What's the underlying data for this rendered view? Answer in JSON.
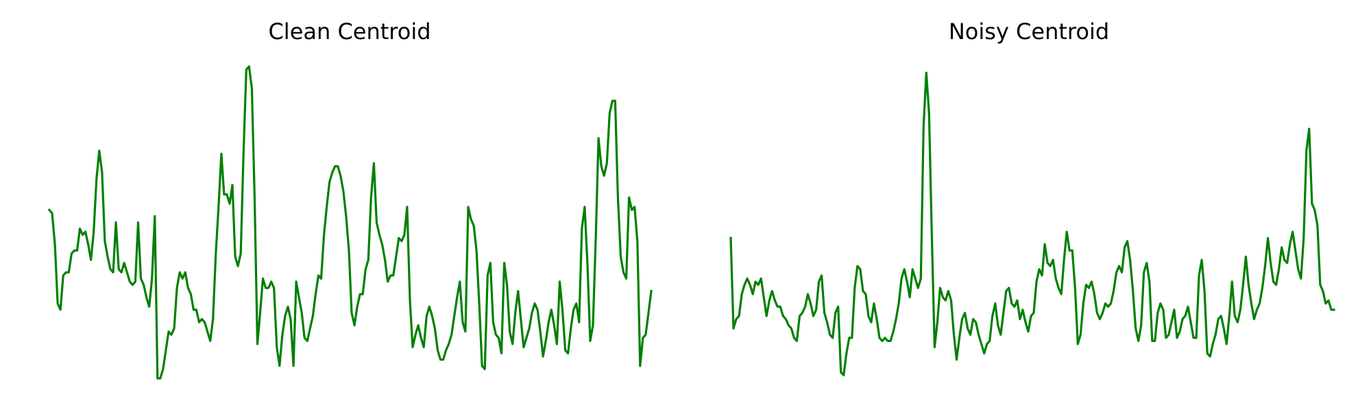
{
  "chart_data": [
    {
      "type": "line",
      "title": "Clean Centroid",
      "xlabel": "",
      "ylabel": "",
      "axes_visible": false,
      "grid": false,
      "line_color": "#008000",
      "ylim": [
        0,
        1
      ],
      "values": [
        0.54,
        0.53,
        0.43,
        0.24,
        0.22,
        0.33,
        0.34,
        0.34,
        0.4,
        0.41,
        0.41,
        0.48,
        0.46,
        0.47,
        0.43,
        0.38,
        0.47,
        0.64,
        0.73,
        0.66,
        0.44,
        0.39,
        0.35,
        0.34,
        0.5,
        0.35,
        0.34,
        0.37,
        0.34,
        0.31,
        0.3,
        0.31,
        0.5,
        0.32,
        0.3,
        0.26,
        0.23,
        0.32,
        0.52,
        0.0,
        0.0,
        0.03,
        0.09,
        0.15,
        0.14,
        0.16,
        0.29,
        0.34,
        0.32,
        0.34,
        0.29,
        0.27,
        0.22,
        0.22,
        0.18,
        0.19,
        0.18,
        0.15,
        0.12,
        0.19,
        0.4,
        0.55,
        0.72,
        0.59,
        0.59,
        0.56,
        0.62,
        0.39,
        0.36,
        0.4,
        0.72,
        0.99,
        1.0,
        0.93,
        0.58,
        0.11,
        0.21,
        0.32,
        0.29,
        0.29,
        0.31,
        0.29,
        0.1,
        0.04,
        0.14,
        0.2,
        0.23,
        0.19,
        0.04,
        0.31,
        0.26,
        0.21,
        0.13,
        0.12,
        0.16,
        0.2,
        0.27,
        0.33,
        0.32,
        0.46,
        0.55,
        0.63,
        0.66,
        0.68,
        0.68,
        0.65,
        0.6,
        0.52,
        0.41,
        0.21,
        0.17,
        0.23,
        0.27,
        0.27,
        0.35,
        0.38,
        0.58,
        0.69,
        0.5,
        0.46,
        0.43,
        0.38,
        0.31,
        0.33,
        0.33,
        0.39,
        0.45,
        0.44,
        0.46,
        0.55,
        0.25,
        0.1,
        0.14,
        0.17,
        0.13,
        0.1,
        0.2,
        0.23,
        0.2,
        0.16,
        0.09,
        0.06,
        0.06,
        0.09,
        0.11,
        0.14,
        0.2,
        0.26,
        0.31,
        0.18,
        0.15,
        0.55,
        0.51,
        0.49,
        0.41,
        0.24,
        0.04,
        0.03,
        0.33,
        0.37,
        0.18,
        0.14,
        0.13,
        0.08,
        0.37,
        0.3,
        0.15,
        0.11,
        0.21,
        0.28,
        0.19,
        0.1,
        0.13,
        0.16,
        0.21,
        0.24,
        0.22,
        0.15,
        0.07,
        0.12,
        0.18,
        0.22,
        0.17,
        0.11,
        0.31,
        0.22,
        0.09,
        0.08,
        0.16,
        0.22,
        0.24,
        0.18,
        0.48,
        0.55,
        0.37,
        0.12,
        0.17,
        0.45,
        0.77,
        0.68,
        0.65,
        0.69,
        0.85,
        0.89,
        0.89,
        0.58,
        0.39,
        0.34,
        0.32,
        0.58,
        0.54,
        0.55,
        0.44,
        0.04,
        0.13,
        0.14,
        0.21,
        0.28
      ]
    },
    {
      "type": "line",
      "title": "Noisy Centroid",
      "xlabel": "",
      "ylabel": "",
      "axes_visible": false,
      "grid": false,
      "line_color": "#008000",
      "ylim": [
        0,
        1
      ],
      "values": [
        0.45,
        0.16,
        0.19,
        0.2,
        0.27,
        0.3,
        0.32,
        0.3,
        0.27,
        0.31,
        0.3,
        0.32,
        0.26,
        0.2,
        0.25,
        0.28,
        0.25,
        0.23,
        0.23,
        0.2,
        0.19,
        0.17,
        0.16,
        0.13,
        0.12,
        0.2,
        0.21,
        0.23,
        0.27,
        0.24,
        0.2,
        0.22,
        0.31,
        0.33,
        0.21,
        0.18,
        0.14,
        0.13,
        0.21,
        0.23,
        0.02,
        0.01,
        0.08,
        0.13,
        0.13,
        0.29,
        0.36,
        0.35,
        0.28,
        0.27,
        0.2,
        0.18,
        0.24,
        0.19,
        0.13,
        0.12,
        0.13,
        0.12,
        0.12,
        0.15,
        0.19,
        0.24,
        0.32,
        0.35,
        0.31,
        0.26,
        0.35,
        0.32,
        0.29,
        0.32,
        0.81,
        0.98,
        0.85,
        0.46,
        0.1,
        0.18,
        0.29,
        0.26,
        0.25,
        0.28,
        0.25,
        0.14,
        0.06,
        0.13,
        0.19,
        0.21,
        0.16,
        0.14,
        0.19,
        0.18,
        0.14,
        0.11,
        0.08,
        0.11,
        0.12,
        0.2,
        0.24,
        0.17,
        0.14,
        0.21,
        0.28,
        0.29,
        0.24,
        0.23,
        0.25,
        0.19,
        0.22,
        0.18,
        0.15,
        0.2,
        0.21,
        0.31,
        0.35,
        0.33,
        0.43,
        0.37,
        0.36,
        0.38,
        0.32,
        0.29,
        0.27,
        0.38,
        0.47,
        0.41,
        0.41,
        0.29,
        0.11,
        0.14,
        0.24,
        0.3,
        0.29,
        0.31,
        0.27,
        0.21,
        0.19,
        0.21,
        0.24,
        0.23,
        0.24,
        0.28,
        0.34,
        0.36,
        0.34,
        0.42,
        0.44,
        0.38,
        0.28,
        0.16,
        0.12,
        0.17,
        0.34,
        0.37,
        0.31,
        0.12,
        0.12,
        0.21,
        0.24,
        0.22,
        0.13,
        0.14,
        0.18,
        0.22,
        0.13,
        0.15,
        0.19,
        0.2,
        0.23,
        0.18,
        0.13,
        0.13,
        0.33,
        0.38,
        0.28,
        0.08,
        0.07,
        0.11,
        0.14,
        0.19,
        0.2,
        0.16,
        0.11,
        0.2,
        0.31,
        0.2,
        0.18,
        0.22,
        0.3,
        0.39,
        0.3,
        0.24,
        0.19,
        0.22,
        0.24,
        0.29,
        0.36,
        0.45,
        0.37,
        0.31,
        0.3,
        0.35,
        0.42,
        0.38,
        0.37,
        0.43,
        0.47,
        0.41,
        0.35,
        0.32,
        0.45,
        0.73,
        0.8,
        0.56,
        0.54,
        0.49,
        0.3,
        0.28,
        0.24,
        0.25,
        0.22,
        0.22
      ]
    }
  ]
}
